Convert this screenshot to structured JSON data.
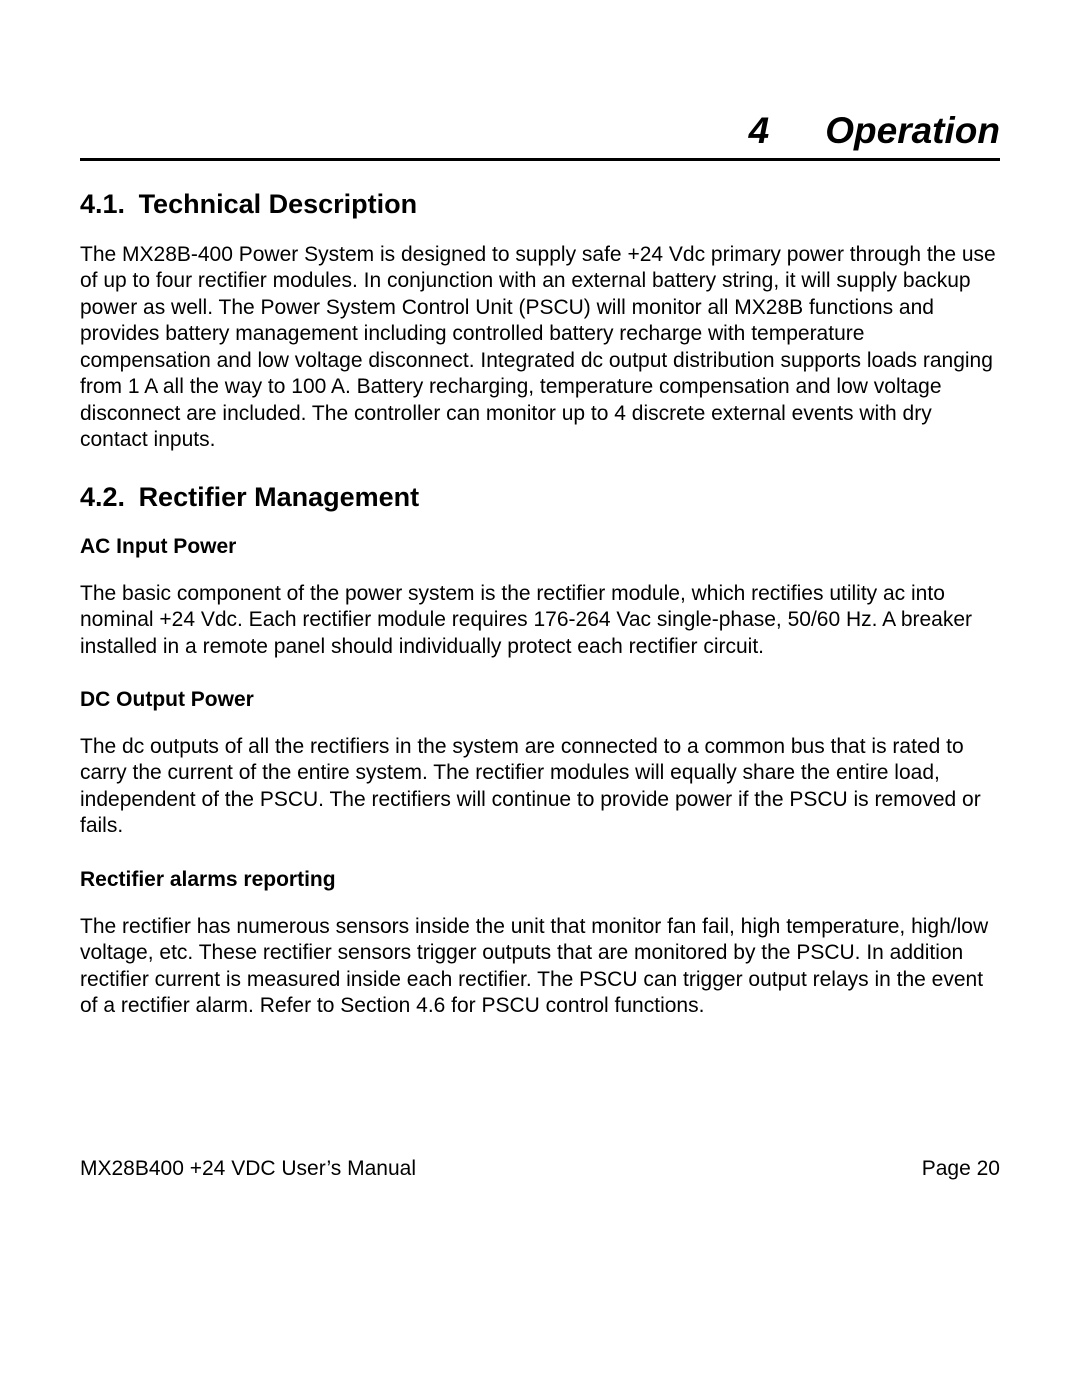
{
  "chapter": {
    "number": "4",
    "title": "Operation"
  },
  "sections": [
    {
      "number": "4.1.",
      "title": "Technical Description",
      "paragraphs": [
        "The MX28B-400 Power System is designed to supply safe +24 Vdc primary power through the use of up to four rectifier modules.  In conjunction with an external battery string, it will supply backup power as well.  The Power System Control Unit (PSCU) will monitor all MX28B functions and provides battery management including controlled battery recharge with temperature compensation and low voltage disconnect.  Integrated dc output distribution supports loads ranging from 1 A all the way to 100 A.  Battery recharging, temperature compensation and low voltage disconnect are included.  The controller can monitor up to 4 discrete external events with dry contact inputs."
      ]
    },
    {
      "number": "4.2.",
      "title": "Rectifier Management",
      "subsections": [
        {
          "heading": "AC Input Power",
          "text": "The basic component of the power system is the rectifier module, which rectifies utility ac into nominal +24 Vdc. Each rectifier module requires 176-264 Vac single-phase, 50/60 Hz.  A breaker installed in a remote panel should individually protect each rectifier circuit."
        },
        {
          "heading": "DC Output Power",
          "text": "The dc outputs of all the rectifiers in the system are connected to a common bus that is rated to carry the current of the entire system.  The rectifier modules will equally share the entire load, independent of the PSCU. The rectifiers will continue to provide  power if the PSCU is removed or fails."
        },
        {
          "heading": "Rectifier alarms reporting",
          "text": "The rectifier has numerous sensors inside the unit that monitor fan fail, high temperature, high/low voltage, etc.  These rectifier sensors trigger outputs that are monitored by the PSCU.  In addition rectifier current is measured inside each rectifier.  The PSCU can trigger output relays in the event of a rectifier alarm. Refer to Section 4.6 for PSCU control functions."
        }
      ]
    }
  ],
  "footer": {
    "left": "MX28B400 +24 VDC User’s Manual",
    "right": "Page 20"
  }
}
